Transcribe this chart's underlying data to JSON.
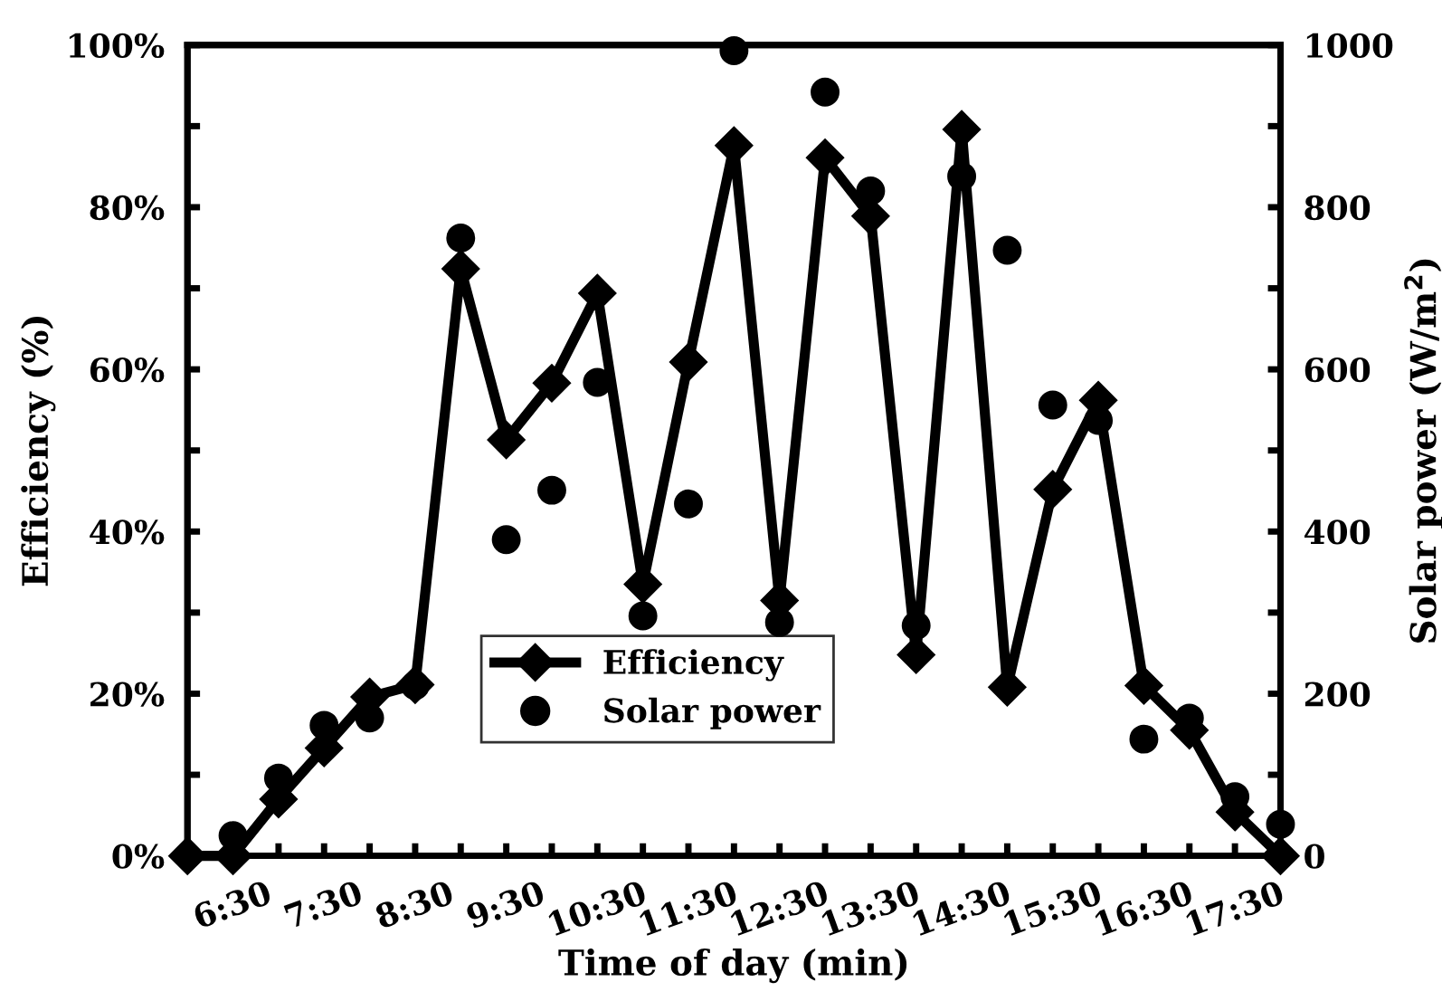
{
  "chart_data": {
    "type": "line",
    "xlabel": "Time of day (min)",
    "ylabel": "Efficiency (%)",
    "y2label": "Solar power (W/m$^{2}$)",
    "x": [
      6.0,
      6.5,
      7.0,
      7.5,
      8.0,
      8.5,
      9.0,
      9.5,
      10.0,
      10.5,
      11.0,
      11.5,
      12.0,
      12.5,
      13.0,
      13.5,
      14.0,
      14.5,
      15.0,
      15.5,
      16.0,
      16.5,
      17.0,
      17.5,
      18.0
    ],
    "series": [
      {
        "name": "Efficiency",
        "color": "#000000",
        "marker": "diamond",
        "line_style": "solid",
        "values": [
          0,
          0,
          7.0,
          13.3,
          19.6,
          21.1,
          72.4,
          51.3,
          58.3,
          69.4,
          33.5,
          60.9,
          87.6,
          31.5,
          86.1,
          78.9,
          24.8,
          89.6,
          20.8,
          45.2,
          56.2,
          21.0,
          15.5,
          5.4,
          0
        ]
      },
      {
        "name": "Solar power",
        "type": "scatter",
        "axis": "y2",
        "color": "#000000",
        "marker": "circle",
        "values": [
          null,
          25,
          96,
          161,
          170,
          210,
          762,
          390,
          451,
          584,
          296,
          434,
          993,
          288,
          942,
          820,
          284,
          838,
          747,
          556,
          537,
          144,
          170,
          73,
          39
        ]
      }
    ],
    "xlim": [
      6,
      18
    ],
    "xticks": [
      {
        "value": 6,
        "label": null
      },
      {
        "value": 6.5,
        "label": "6:30"
      },
      {
        "value": 7,
        "label": null
      },
      {
        "value": 7.5,
        "label": "7:30"
      },
      {
        "value": 8,
        "label": null
      },
      {
        "value": 8.5,
        "label": "8:30"
      },
      {
        "value": 9,
        "label": null
      },
      {
        "value": 9.5,
        "label": "9:30"
      },
      {
        "value": 10,
        "label": null
      },
      {
        "value": 10.5,
        "label": "10:30"
      },
      {
        "value": 11,
        "label": null
      },
      {
        "value": 11.5,
        "label": "11:30"
      },
      {
        "value": 12,
        "label": null
      },
      {
        "value": 12.5,
        "label": "12:30"
      },
      {
        "value": 13,
        "label": null
      },
      {
        "value": 13.5,
        "label": "13:30"
      },
      {
        "value": 14,
        "label": null
      },
      {
        "value": 14.5,
        "label": "14:30"
      },
      {
        "value": 15,
        "label": null
      },
      {
        "value": 15.5,
        "label": "15:30"
      },
      {
        "value": 16,
        "label": null
      },
      {
        "value": 16.5,
        "label": "16:30"
      },
      {
        "value": 17,
        "label": null
      },
      {
        "value": 17.5,
        "label": "17:30"
      },
      {
        "value": 18,
        "label": null
      }
    ],
    "ylim": [
      0,
      100
    ],
    "yticks": [
      {
        "value": 0,
        "label": "0%"
      },
      {
        "value": 10,
        "label": null
      },
      {
        "value": 20,
        "label": "20%"
      },
      {
        "value": 30,
        "label": null
      },
      {
        "value": 40,
        "label": "40%"
      },
      {
        "value": 50,
        "label": null
      },
      {
        "value": 60,
        "label": "60%"
      },
      {
        "value": 70,
        "label": null
      },
      {
        "value": 80,
        "label": "80%"
      },
      {
        "value": 90,
        "label": null
      },
      {
        "value": 100,
        "label": "100%"
      }
    ],
    "y2lim": [
      0,
      1000
    ],
    "y2ticks": [
      0,
      {
        "value": 100,
        "label": null
      },
      200,
      {
        "value": 300,
        "label": null
      },
      400,
      {
        "value": 500,
        "label": null
      },
      600,
      {
        "value": 700,
        "label": null
      },
      800,
      {
        "value": 900,
        "label": null
      },
      1000
    ],
    "grid": false,
    "legend": "bottom"
  }
}
